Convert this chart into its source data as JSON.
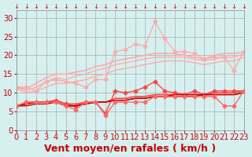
{
  "background_color": "#d6f0f0",
  "grid_color": "#aaaaaa",
  "xlabel": "Vent moyen/en rafales ( km/h )",
  "xlabel_color": "#cc0000",
  "xlabel_fontsize": 9,
  "tick_color": "#cc0000",
  "tick_fontsize": 7,
  "ylim": [
    0,
    32
  ],
  "xlim": [
    0,
    23
  ],
  "yticks": [
    0,
    5,
    10,
    15,
    20,
    25,
    30
  ],
  "xticks": [
    0,
    1,
    2,
    3,
    4,
    5,
    6,
    7,
    8,
    9,
    10,
    11,
    12,
    13,
    14,
    15,
    16,
    17,
    18,
    19,
    20,
    21,
    22,
    23
  ],
  "lines": [
    {
      "x": [
        0,
        1,
        2,
        3,
        4,
        5,
        6,
        7,
        8,
        9,
        10,
        11,
        12,
        13,
        14,
        15,
        16,
        17,
        18,
        19,
        20,
        21,
        22,
        23
      ],
      "y": [
        11.5,
        11.5,
        10.5,
        13.0,
        13.5,
        13.0,
        12.5,
        11.5,
        13.5,
        13.5,
        21.0,
        21.5,
        23.0,
        22.5,
        29.0,
        24.5,
        21.0,
        21.0,
        20.5,
        19.0,
        19.5,
        19.5,
        16.0,
        21.0
      ],
      "color": "#ffaaaa",
      "marker": "D",
      "markersize": 2.5,
      "linewidth": 1.0
    },
    {
      "x": [
        0,
        1,
        2,
        3,
        4,
        5,
        6,
        7,
        8,
        9,
        10,
        11,
        12,
        13,
        14,
        15,
        16,
        17,
        18,
        19,
        20,
        21,
        22,
        23
      ],
      "y": [
        11.5,
        11.0,
        12.5,
        14.0,
        15.0,
        15.0,
        15.5,
        16.0,
        17.0,
        17.5,
        18.5,
        19.0,
        19.5,
        20.0,
        20.5,
        20.5,
        20.5,
        20.0,
        19.5,
        19.0,
        20.0,
        20.5,
        20.5,
        21.0
      ],
      "color": "#ffaaaa",
      "marker": null,
      "markersize": 0,
      "linewidth": 1.2
    },
    {
      "x": [
        0,
        1,
        2,
        3,
        4,
        5,
        6,
        7,
        8,
        9,
        10,
        11,
        12,
        13,
        14,
        15,
        16,
        17,
        18,
        19,
        20,
        21,
        22,
        23
      ],
      "y": [
        11.5,
        10.5,
        11.5,
        13.0,
        14.0,
        13.5,
        14.5,
        15.0,
        16.0,
        16.5,
        17.5,
        18.0,
        18.5,
        19.0,
        19.5,
        19.5,
        19.5,
        19.5,
        19.0,
        18.5,
        19.0,
        19.5,
        19.5,
        20.5
      ],
      "color": "#ffaaaa",
      "marker": null,
      "markersize": 0,
      "linewidth": 1.0
    },
    {
      "x": [
        0,
        1,
        2,
        3,
        4,
        5,
        6,
        7,
        8,
        9,
        10,
        11,
        12,
        13,
        14,
        15,
        16,
        17,
        18,
        19,
        20,
        21,
        22,
        23
      ],
      "y": [
        11.0,
        10.0,
        10.5,
        11.5,
        12.5,
        12.5,
        13.0,
        13.5,
        14.5,
        15.0,
        16.0,
        16.5,
        17.0,
        17.5,
        18.0,
        18.5,
        18.5,
        18.5,
        18.0,
        17.5,
        18.0,
        18.5,
        18.5,
        19.5
      ],
      "color": "#ffaaaa",
      "marker": null,
      "markersize": 0,
      "linewidth": 1.0
    },
    {
      "x": [
        0,
        1,
        2,
        3,
        4,
        5,
        6,
        7,
        8,
        9,
        10,
        11,
        12,
        13,
        14,
        15,
        16,
        17,
        18,
        19,
        20,
        21,
        22,
        23
      ],
      "y": [
        6.5,
        7.5,
        7.5,
        7.5,
        8.0,
        7.0,
        6.5,
        7.5,
        7.5,
        4.5,
        10.5,
        10.0,
        10.5,
        11.5,
        13.0,
        10.5,
        10.0,
        9.5,
        10.5,
        9.5,
        10.5,
        10.5,
        10.5,
        10.5
      ],
      "color": "#ff4444",
      "marker": "D",
      "markersize": 2.5,
      "linewidth": 1.0
    },
    {
      "x": [
        0,
        1,
        2,
        3,
        4,
        5,
        6,
        7,
        8,
        9,
        10,
        11,
        12,
        13,
        14,
        15,
        16,
        17,
        18,
        19,
        20,
        21,
        22,
        23
      ],
      "y": [
        6.5,
        7.0,
        7.5,
        7.5,
        8.0,
        7.0,
        7.0,
        7.5,
        7.5,
        7.5,
        8.5,
        8.5,
        9.0,
        9.0,
        9.5,
        9.5,
        9.5,
        9.5,
        9.5,
        9.5,
        10.0,
        10.0,
        10.0,
        10.5
      ],
      "color": "#ff4444",
      "marker": null,
      "markersize": 0,
      "linewidth": 1.2
    },
    {
      "x": [
        0,
        1,
        2,
        3,
        4,
        5,
        6,
        7,
        8,
        9,
        10,
        11,
        12,
        13,
        14,
        15,
        16,
        17,
        18,
        19,
        20,
        21,
        22,
        23
      ],
      "y": [
        6.5,
        7.0,
        7.5,
        7.5,
        7.5,
        6.5,
        6.5,
        7.0,
        7.5,
        7.5,
        8.0,
        8.0,
        8.5,
        8.5,
        9.0,
        9.0,
        9.5,
        9.5,
        9.5,
        9.5,
        9.5,
        9.5,
        9.5,
        10.0
      ],
      "color": "#cc0000",
      "marker": null,
      "markersize": 0,
      "linewidth": 1.0
    },
    {
      "x": [
        0,
        1,
        2,
        3,
        4,
        5,
        6,
        7,
        8,
        9,
        10,
        11,
        12,
        13,
        14,
        15,
        16,
        17,
        18,
        19,
        20,
        21,
        22,
        23
      ],
      "y": [
        6.5,
        6.5,
        7.0,
        7.0,
        7.5,
        6.5,
        6.5,
        7.0,
        7.5,
        7.5,
        8.0,
        8.0,
        8.5,
        8.5,
        9.0,
        9.0,
        9.0,
        9.0,
        9.0,
        9.5,
        9.5,
        9.5,
        9.5,
        10.0
      ],
      "color": "#cc0000",
      "marker": null,
      "markersize": 0,
      "linewidth": 1.0
    },
    {
      "x": [
        0,
        1,
        2,
        3,
        4,
        5,
        6,
        7,
        8,
        9,
        10,
        11,
        12,
        13,
        14,
        15,
        16,
        17,
        18,
        19,
        20,
        21,
        22,
        23
      ],
      "y": [
        6.5,
        7.5,
        7.5,
        7.5,
        7.5,
        6.5,
        5.5,
        7.5,
        7.5,
        4.0,
        7.5,
        7.5,
        7.5,
        7.5,
        9.0,
        9.0,
        9.0,
        9.0,
        9.0,
        9.0,
        9.0,
        6.5,
        6.5,
        10.5
      ],
      "color": "#ff6666",
      "marker": "D",
      "markersize": 2.5,
      "linewidth": 1.0
    }
  ]
}
